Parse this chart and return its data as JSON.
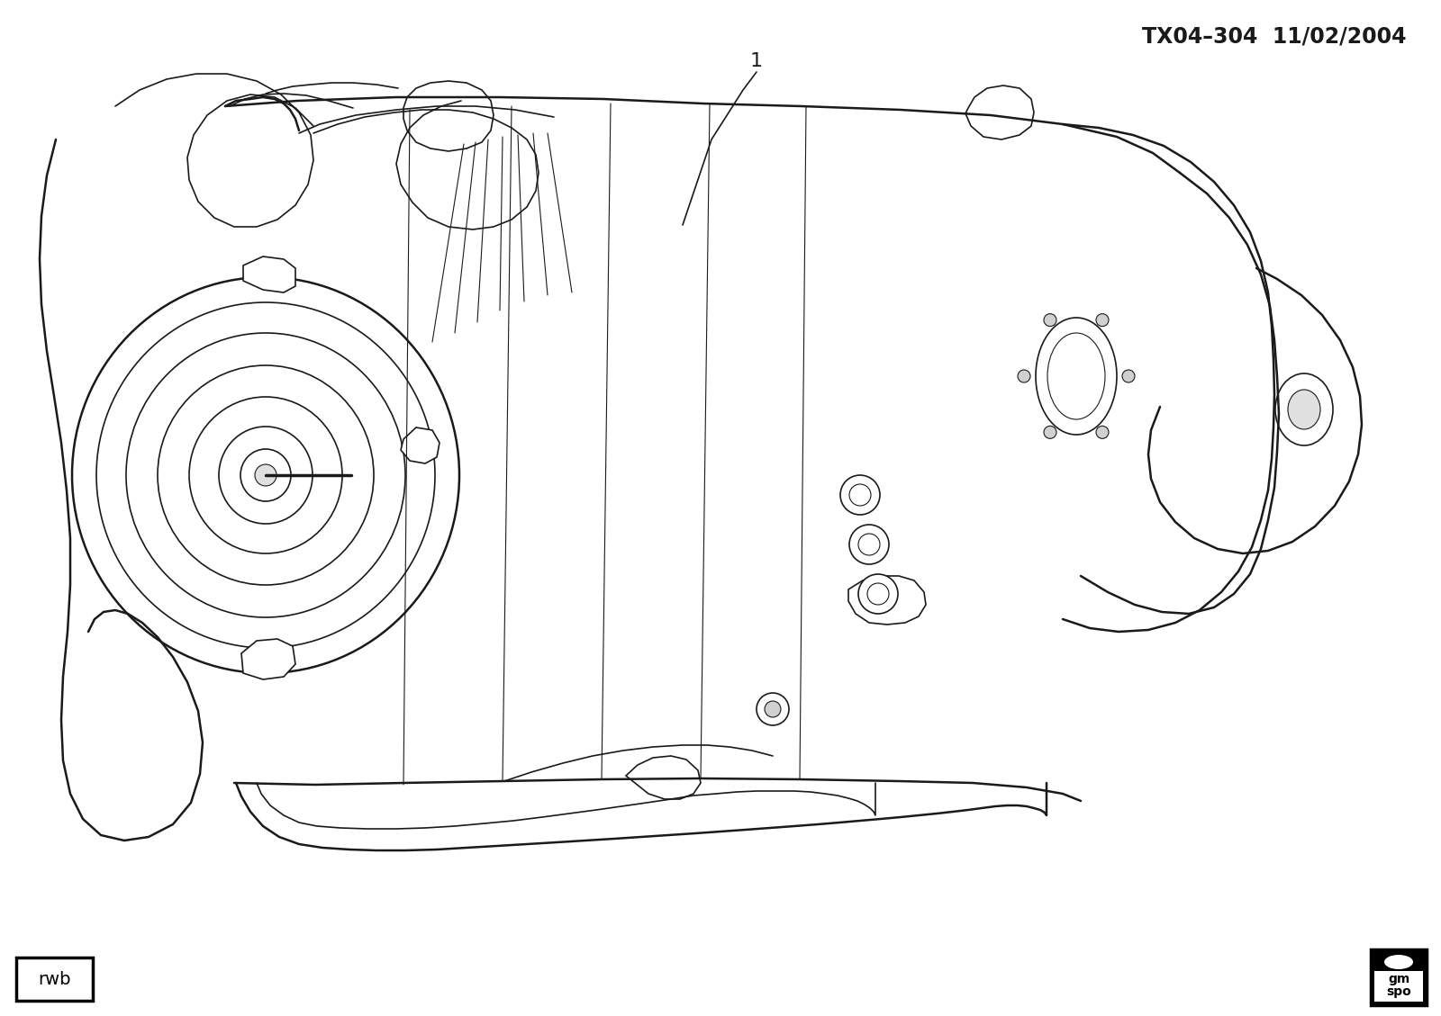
{
  "title_text": "TX04–304  11/02/2004",
  "part_number_label": "1",
  "rwb_label": "rwb",
  "gm_line1": "gm",
  "gm_line2": "spo",
  "background_color": "#ffffff",
  "line_color": "#1a1a1a",
  "text_color": "#1a1a1a",
  "fig_width": 16.0,
  "fig_height": 11.29,
  "dpi": 100
}
